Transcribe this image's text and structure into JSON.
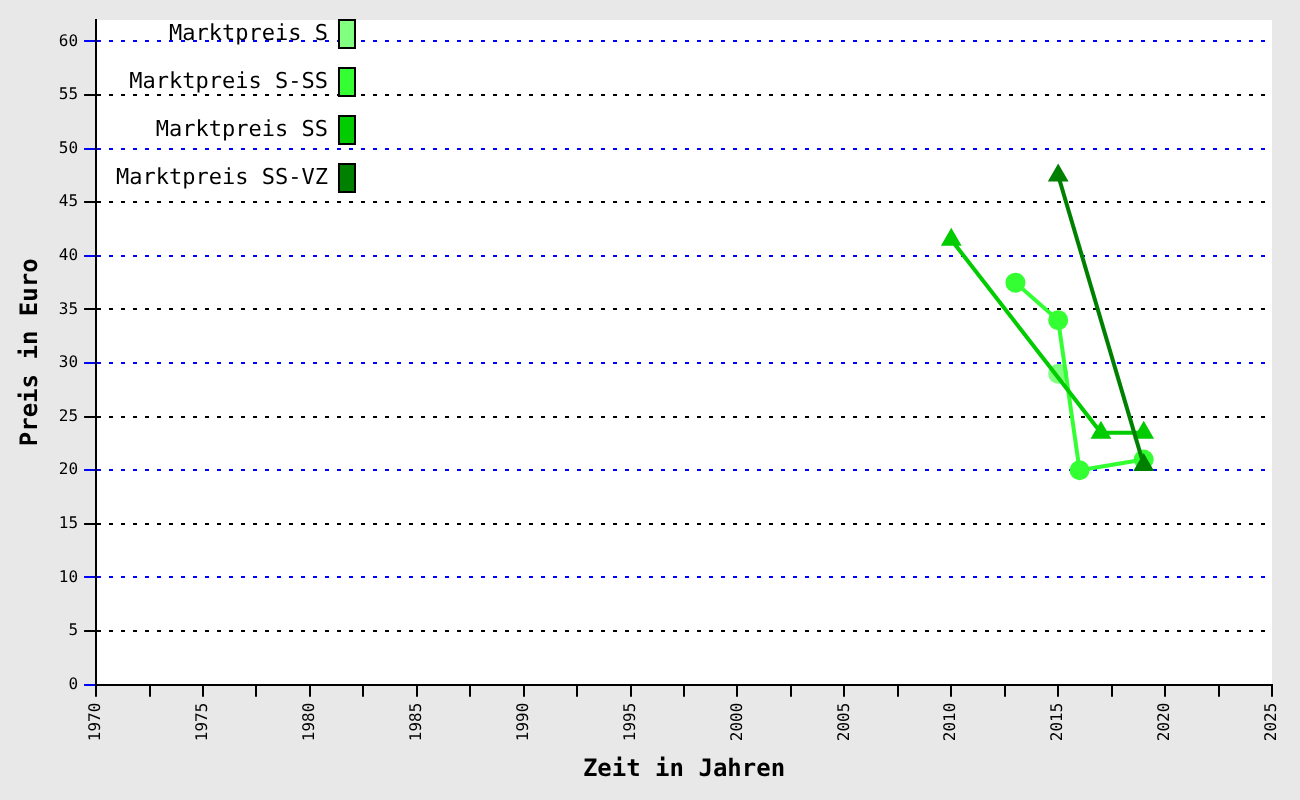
{
  "chart_data": {
    "type": "line",
    "xlabel": "Zeit in Jahren",
    "ylabel": "Preis in Euro",
    "series": [
      {
        "name": "Marktpreis S",
        "color": "#80ff80",
        "marker": "circle",
        "x": [
          2015
        ],
        "values": [
          29
        ]
      },
      {
        "name": "Marktpreis S-SS",
        "color": "#33ff33",
        "marker": "circle",
        "x": [
          2013,
          2015,
          2016,
          2019
        ],
        "values": [
          37.5,
          34,
          20,
          21
        ]
      },
      {
        "name": "Marktpreis SS",
        "color": "#00cc00",
        "marker": "triangle",
        "x": [
          2010,
          2017,
          2019
        ],
        "values": [
          41.5,
          23.5,
          23.5
        ]
      },
      {
        "name": "Marktpreis SS-VZ",
        "color": "#008000",
        "marker": "triangle",
        "x": [
          2015,
          2019
        ],
        "values": [
          47.5,
          20.5
        ]
      }
    ],
    "xlim": [
      1970,
      2025
    ],
    "xticks": [
      1970,
      {
        "value": 1972.5,
        "label": null
      },
      1975,
      {
        "value": 1977.5,
        "label": null
      },
      1980,
      {
        "value": 1982.5,
        "label": null
      },
      1985,
      {
        "value": 1987.5,
        "label": null
      },
      1990,
      {
        "value": 1992.5,
        "label": null
      },
      1995,
      {
        "value": 1997.5,
        "label": null
      },
      2000,
      {
        "value": 2002.5,
        "label": null
      },
      2005,
      {
        "value": 2007.5,
        "label": null
      },
      2010,
      {
        "value": 2012.5,
        "label": null
      },
      2015,
      {
        "value": 2017.5,
        "label": null
      },
      2020,
      {
        "value": 2022.5,
        "label": null
      },
      2025
    ],
    "ylim": [
      0,
      62
    ],
    "yticks": [
      0,
      5,
      10,
      15,
      20,
      25,
      30,
      35,
      40,
      45,
      50,
      55,
      60
    ],
    "grid": "y",
    "legend": "top left",
    "line_style": "solid"
  }
}
